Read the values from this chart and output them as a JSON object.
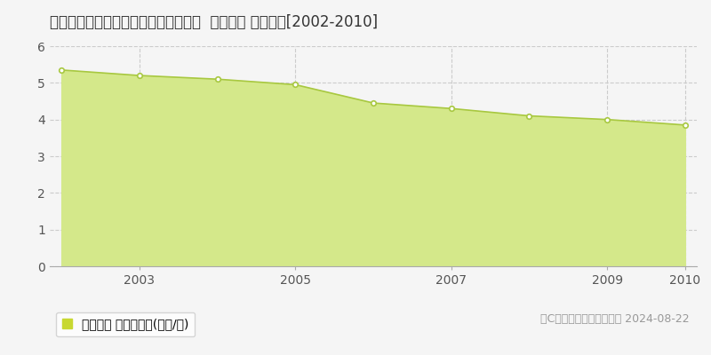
{
  "title": "北海道釧路市大楽毛４丁目４番１９外  地価公示 地価推移[2002-2010]",
  "years": [
    2002,
    2003,
    2004,
    2005,
    2006,
    2007,
    2008,
    2009,
    2010
  ],
  "values": [
    5.35,
    5.2,
    5.1,
    4.95,
    4.45,
    4.3,
    4.1,
    4.0,
    3.85
  ],
  "line_color": "#a8c840",
  "fill_color": "#d4e88a",
  "marker_face": "#ffffff",
  "marker_edge": "#a8c840",
  "background_color": "#f5f5f5",
  "plot_bg_color": "#f5f5f5",
  "grid_color": "#cccccc",
  "ylim": [
    0,
    6
  ],
  "yticks": [
    0,
    1,
    2,
    3,
    4,
    5,
    6
  ],
  "xtick_years": [
    2003,
    2005,
    2007,
    2009,
    2010
  ],
  "legend_label": "地価公示 平均坪単価(万円/坪)",
  "legend_color": "#c8d832",
  "copyright_text": "（C）土地価格ドットコム 2024-08-22",
  "title_fontsize": 12,
  "axis_fontsize": 10,
  "legend_fontsize": 10,
  "copyright_fontsize": 9
}
